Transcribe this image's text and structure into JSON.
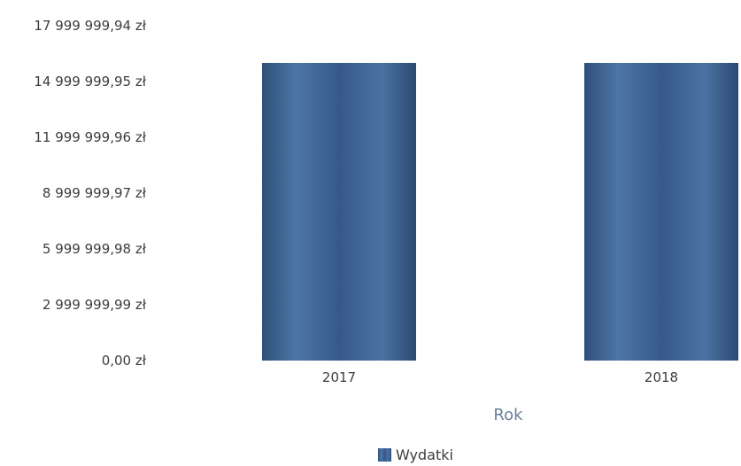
{
  "chart_data": {
    "type": "bar",
    "title": "",
    "xlabel": "Rok",
    "ylabel": "",
    "categories": [
      "2017",
      "2018"
    ],
    "series": [
      {
        "name": "Wydatki",
        "values": [
          16000000,
          16000000
        ]
      }
    ],
    "ylim": [
      0,
      17999999.94
    ],
    "y_ticks": [
      "17 999 999,94 zł",
      "14 999 999,95 zł",
      "11 999 999,96 zł",
      "8 999 999,97 zł",
      "5 999 999,98 zł",
      "2 999 999,99 zł",
      "0,00 zł"
    ],
    "y_tick_values": [
      17999999.94,
      14999999.95,
      11999999.96,
      8999999.97,
      5999999.98,
      2999999.99,
      0
    ],
    "bar_color": "#3a5f8c",
    "legend_position": "bottom-center",
    "grid": false
  }
}
